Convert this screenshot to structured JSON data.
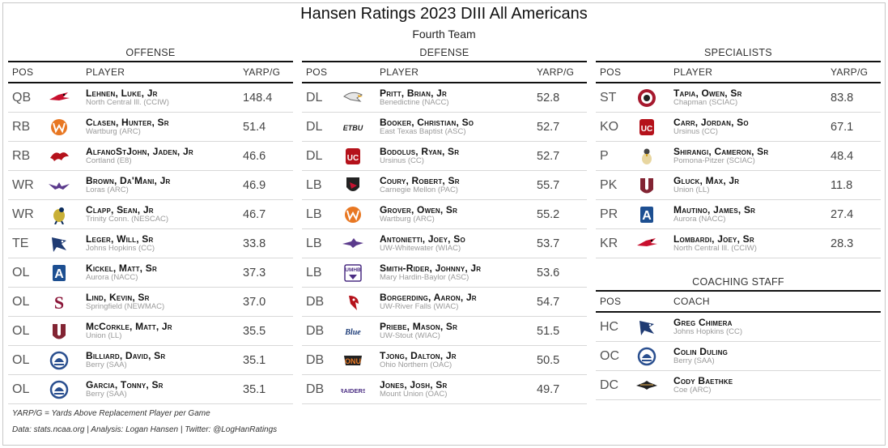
{
  "title": "Hansen Ratings 2023 DIII All Americans",
  "subtitle": "Fourth Team",
  "headers": {
    "pos": "POS",
    "player": "PLAYER",
    "yarp": "YARP/G",
    "coach": "COACH"
  },
  "sections": {
    "offense": "OFFENSE",
    "defense": "DEFENSE",
    "specialists": "SPECIALISTS",
    "coaching": "COACHING STAFF"
  },
  "offense": [
    {
      "pos": "QB",
      "name": "Lehnen, Luke, Jr",
      "school": "North Central Ill. (CCIW)",
      "yarp": "148.4",
      "logo": "cardinal-logo-icon",
      "color": "#c8102e"
    },
    {
      "pos": "RB",
      "name": "Clasen, Hunter, Sr",
      "school": "Wartburg (ARC)",
      "yarp": "51.4",
      "logo": "wartburg-w-logo-icon",
      "color": "#e87722"
    },
    {
      "pos": "RB",
      "name": "AlfanoStJohn, Jaden, Jr",
      "school": "Cortland (E8)",
      "yarp": "46.6",
      "logo": "red-dragon-logo-icon",
      "color": "#b5121b"
    },
    {
      "pos": "WR",
      "name": "Brown, Da'Mani, Jr",
      "school": "Loras (ARC)",
      "yarp": "46.9",
      "logo": "duhawk-logo-icon",
      "color": "#5b3a8c"
    },
    {
      "pos": "WR",
      "name": "Clapp, Sean, Jr",
      "school": "Trinity Conn. (NESCAC)",
      "yarp": "46.7",
      "logo": "bantam-logo-icon",
      "color": "#0b2b5c"
    },
    {
      "pos": "TE",
      "name": "Leger, Will, Sr",
      "school": "Johns Hopkins (CC)",
      "yarp": "33.8",
      "logo": "blue-jay-logo-icon",
      "color": "#1f3b73"
    },
    {
      "pos": "OL",
      "name": "Kickel, Matt, Sr",
      "school": "Aurora (NACC)",
      "yarp": "37.3",
      "logo": "aurora-a-logo-icon",
      "color": "#1d4f91"
    },
    {
      "pos": "OL",
      "name": "Lind, Kevin, Sr",
      "school": "Springfield (NEWMAC)",
      "yarp": "37.0",
      "logo": "springfield-s-logo-icon",
      "color": "#8a1538"
    },
    {
      "pos": "OL",
      "name": "McCorkle, Matt, Jr",
      "school": "Union (LL)",
      "yarp": "35.5",
      "logo": "union-u-logo-icon",
      "color": "#822433"
    },
    {
      "pos": "OL",
      "name": "Billiard, David, Sr",
      "school": "Berry (SAA)",
      "yarp": "35.1",
      "logo": "berry-viking-logo-icon",
      "color": "#2a4f8f"
    },
    {
      "pos": "OL",
      "name": "Garcia, Tonny, Sr",
      "school": "Berry (SAA)",
      "yarp": "35.1",
      "logo": "berry-viking-logo-icon",
      "color": "#2a4f8f"
    }
  ],
  "defense": [
    {
      "pos": "DL",
      "name": "Pritt, Brian, Jr",
      "school": "Benedictine (NACC)",
      "yarp": "52.8",
      "logo": "eagle-logo-icon",
      "color": "#6b6b6b"
    },
    {
      "pos": "DL",
      "name": "Booker, Christian, So",
      "school": "East Texas Baptist (ASC)",
      "yarp": "52.7",
      "logo": "etbu-logo-icon",
      "color": "#222222"
    },
    {
      "pos": "DL",
      "name": "Bodolus, Ryan, Sr",
      "school": "Ursinus (CC)",
      "yarp": "52.7",
      "logo": "ursinus-bear-logo-icon",
      "color": "#b5121b"
    },
    {
      "pos": "LB",
      "name": "Coury, Robert, Sr",
      "school": "Carnegie Mellon (PAC)",
      "yarp": "55.7",
      "logo": "tartan-shield-logo-icon",
      "color": "#222222"
    },
    {
      "pos": "LB",
      "name": "Grover, Owen, Sr",
      "school": "Wartburg (ARC)",
      "yarp": "55.2",
      "logo": "wartburg-w-logo-icon",
      "color": "#e87722"
    },
    {
      "pos": "LB",
      "name": "Antonietti, Joey, So",
      "school": "UW-Whitewater (WIAC)",
      "yarp": "53.7",
      "logo": "warhawk-logo-icon",
      "color": "#5b3a8c"
    },
    {
      "pos": "LB",
      "name": "Smith-Rider, Johnny, Jr",
      "school": "Mary Hardin-Baylor (ASC)",
      "yarp": "53.6",
      "logo": "umhb-logo-icon",
      "color": "#4b2e83"
    },
    {
      "pos": "DB",
      "name": "Borgerding, Aaron, Jr",
      "school": "UW-River Falls (WIAC)",
      "yarp": "54.7",
      "logo": "falcon-logo-icon",
      "color": "#b5121b"
    },
    {
      "pos": "DB",
      "name": "Priebe, Mason, Sr",
      "school": "UW-Stout (WIAC)",
      "yarp": "51.5",
      "logo": "blue-devil-logo-icon",
      "color": "#1d3c78"
    },
    {
      "pos": "DB",
      "name": "Tjong, Dalton, Jr",
      "school": "Ohio Northern (OAC)",
      "yarp": "50.5",
      "logo": "onu-logo-icon",
      "color": "#e87722"
    },
    {
      "pos": "DB",
      "name": "Jones, Josh, Sr",
      "school": "Mount Union (OAC)",
      "yarp": "49.7",
      "logo": "raiders-logo-icon",
      "color": "#4b2e83"
    }
  ],
  "specialists": [
    {
      "pos": "ST",
      "name": "Tapia, Owen, Sr",
      "school": "Chapman (SCIAC)",
      "yarp": "83.8",
      "logo": "chapman-c-logo-icon",
      "color": "#a6192e"
    },
    {
      "pos": "KO",
      "name": "Carr, Jordan, So",
      "school": "Ursinus (CC)",
      "yarp": "67.1",
      "logo": "ursinus-bear-logo-icon",
      "color": "#b5121b"
    },
    {
      "pos": "P",
      "name": "Shirangi, Cameron, Sr",
      "school": "Pomona-Pitzer (SCIAC)",
      "yarp": "48.4",
      "logo": "sagehen-logo-icon",
      "color": "#d4a017"
    },
    {
      "pos": "PK",
      "name": "Gluck, Max, Jr",
      "school": "Union (LL)",
      "yarp": "11.8",
      "logo": "union-u-logo-icon",
      "color": "#822433"
    },
    {
      "pos": "PR",
      "name": "Mautino, James, Sr",
      "school": "Aurora (NACC)",
      "yarp": "27.4",
      "logo": "aurora-a-logo-icon",
      "color": "#1d4f91"
    },
    {
      "pos": "KR",
      "name": "Lombardi, Joey, Sr",
      "school": "North Central Ill. (CCIW)",
      "yarp": "28.3",
      "logo": "cardinal-logo-icon",
      "color": "#c8102e"
    }
  ],
  "coaching": [
    {
      "pos": "HC",
      "name": "Greg Chimera",
      "school": "Johns Hopkins (CC)",
      "logo": "blue-jay-logo-icon",
      "color": "#1f3b73"
    },
    {
      "pos": "OC",
      "name": "Colin Duling",
      "school": "Berry (SAA)",
      "logo": "berry-viking-logo-icon",
      "color": "#2a4f8f"
    },
    {
      "pos": "DC",
      "name": "Cody Baethke",
      "school": "Coe (ARC)",
      "logo": "kohawk-logo-icon",
      "color": "#8a6d3b"
    }
  ],
  "notes": {
    "definition": "YARP/G = Yards Above Replacement Player per Game",
    "source": "Data: stats.ncaa.org | Analysis: Logan Hansen | Twitter: @LogHanRatings"
  }
}
